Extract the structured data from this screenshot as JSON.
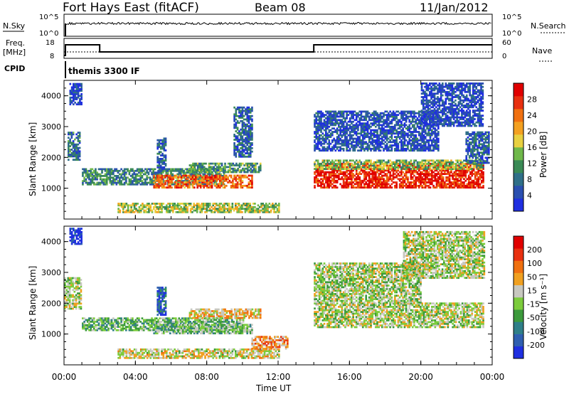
{
  "header": {
    "title": "Fort Hays East (fitACF)",
    "beam": "Beam 08",
    "date": "11/Jan/2012",
    "cpid": "CPID",
    "cpid_value": "themis 3300 IF"
  },
  "noise_panel": {
    "left_label": "N.Sky",
    "right_label": "N.Search",
    "left_ticks": [
      "10^5",
      "10^0"
    ],
    "right_ticks": [
      "10^5",
      "10^0"
    ]
  },
  "freq_panel": {
    "left_label_1": "Freq.",
    "left_label_2": "[MHz]",
    "right_label": "Nave",
    "left_ticks": [
      "18",
      "8"
    ],
    "right_ticks": [
      "60",
      "0"
    ]
  },
  "colors": {
    "power": [
      "#1f2fe0",
      "#2a4fb0",
      "#2f6f88",
      "#3a8a55",
      "#6fb84a",
      "#e8d040",
      "#f3a020",
      "#f07010",
      "#e83010",
      "#e00000"
    ],
    "velocity": [
      "#1f2fe0",
      "#2f5fb0",
      "#2f7f88",
      "#3c9a3c",
      "#7ccc3c",
      "#c8c8c0",
      "#f0a020",
      "#f07010",
      "#e83010",
      "#e00000"
    ]
  },
  "chart_data": [
    {
      "type": "heatmap",
      "name": "power",
      "ylabel": "Slant Range [km]",
      "yticks": [
        "1000",
        "2000",
        "3000",
        "4000"
      ],
      "ylim": [
        0,
        4500
      ],
      "xlim": [
        0,
        24
      ],
      "colorbar_label": "Power [dB]",
      "colorbar_ticks": [
        "4",
        "8",
        "12",
        "16",
        "20",
        "24",
        "28"
      ],
      "colorbar_range": [
        0,
        32
      ],
      "features": [
        {
          "t0": 0.3,
          "t1": 1.0,
          "r0": 3700,
          "r1": 4400,
          "level": 0.1
        },
        {
          "t0": 0.2,
          "t1": 0.9,
          "r0": 1900,
          "r1": 2800,
          "level": 0.25
        },
        {
          "t0": 1.0,
          "t1": 9.0,
          "r0": 1100,
          "r1": 1600,
          "level": 0.3
        },
        {
          "t0": 5.0,
          "t1": 10.5,
          "r0": 1000,
          "r1": 1400,
          "level": 0.75
        },
        {
          "t0": 7.0,
          "t1": 11.0,
          "r0": 1500,
          "r1": 1800,
          "level": 0.35
        },
        {
          "t0": 5.2,
          "t1": 5.7,
          "r0": 1600,
          "r1": 2600,
          "level": 0.2
        },
        {
          "t0": 3.0,
          "t1": 12.0,
          "r0": 200,
          "r1": 500,
          "level": 0.5
        },
        {
          "t0": 14.0,
          "t1": 23.5,
          "r0": 1000,
          "r1": 1800,
          "level": 0.9
        },
        {
          "t0": 14.0,
          "t1": 23.5,
          "r0": 1600,
          "r1": 1900,
          "level": 0.45
        },
        {
          "t0": 14.0,
          "t1": 21.0,
          "r0": 2200,
          "r1": 3500,
          "level": 0.15
        },
        {
          "t0": 20.0,
          "t1": 23.5,
          "r0": 3000,
          "r1": 4400,
          "level": 0.12
        },
        {
          "t0": 22.5,
          "t1": 23.8,
          "r0": 1800,
          "r1": 2800,
          "level": 0.2
        },
        {
          "t0": 9.5,
          "t1": 10.5,
          "r0": 2000,
          "r1": 3600,
          "level": 0.2
        }
      ]
    },
    {
      "type": "heatmap",
      "name": "velocity",
      "ylabel": "Slant Range [km]",
      "yticks": [
        "1000",
        "2000",
        "3000",
        "4000"
      ],
      "ylim": [
        0,
        4500
      ],
      "xlim": [
        0,
        24
      ],
      "xticks": [
        "00:00",
        "04:00",
        "08:00",
        "12:00",
        "16:00",
        "20:00",
        "00:00"
      ],
      "xlabel": "Time UT",
      "colorbar_label": "Velocity [m s⁻¹]",
      "colorbar_ticks": [
        "200",
        "100",
        "50",
        "15",
        "-15",
        "-50",
        "-100",
        "-200"
      ],
      "features": [
        {
          "t0": 0.3,
          "t1": 1.0,
          "r0": 3900,
          "r1": 4400,
          "level": 0.05
        },
        {
          "t0": 0.0,
          "t1": 0.9,
          "r0": 1800,
          "r1": 2800,
          "level": 0.5
        },
        {
          "t0": 1.0,
          "t1": 10.0,
          "r0": 1100,
          "r1": 1500,
          "level": 0.4
        },
        {
          "t0": 5.0,
          "t1": 10.5,
          "r0": 1000,
          "r1": 1300,
          "level": 0.42
        },
        {
          "t0": 5.2,
          "t1": 5.7,
          "r0": 1600,
          "r1": 2500,
          "level": 0.2
        },
        {
          "t0": 7.0,
          "t1": 11.0,
          "r0": 1500,
          "r1": 1800,
          "level": 0.62
        },
        {
          "t0": 3.0,
          "t1": 12.0,
          "r0": 200,
          "r1": 500,
          "level": 0.55
        },
        {
          "t0": 14.0,
          "t1": 23.5,
          "r0": 1200,
          "r1": 2000,
          "level": 0.5
        },
        {
          "t0": 14.0,
          "t1": 20.0,
          "r0": 2000,
          "r1": 3300,
          "level": 0.48
        },
        {
          "t0": 19.0,
          "t1": 23.5,
          "r0": 2800,
          "r1": 4300,
          "level": 0.5
        },
        {
          "t0": 10.5,
          "t1": 12.5,
          "r0": 500,
          "r1": 900,
          "level": 0.7
        }
      ]
    }
  ]
}
